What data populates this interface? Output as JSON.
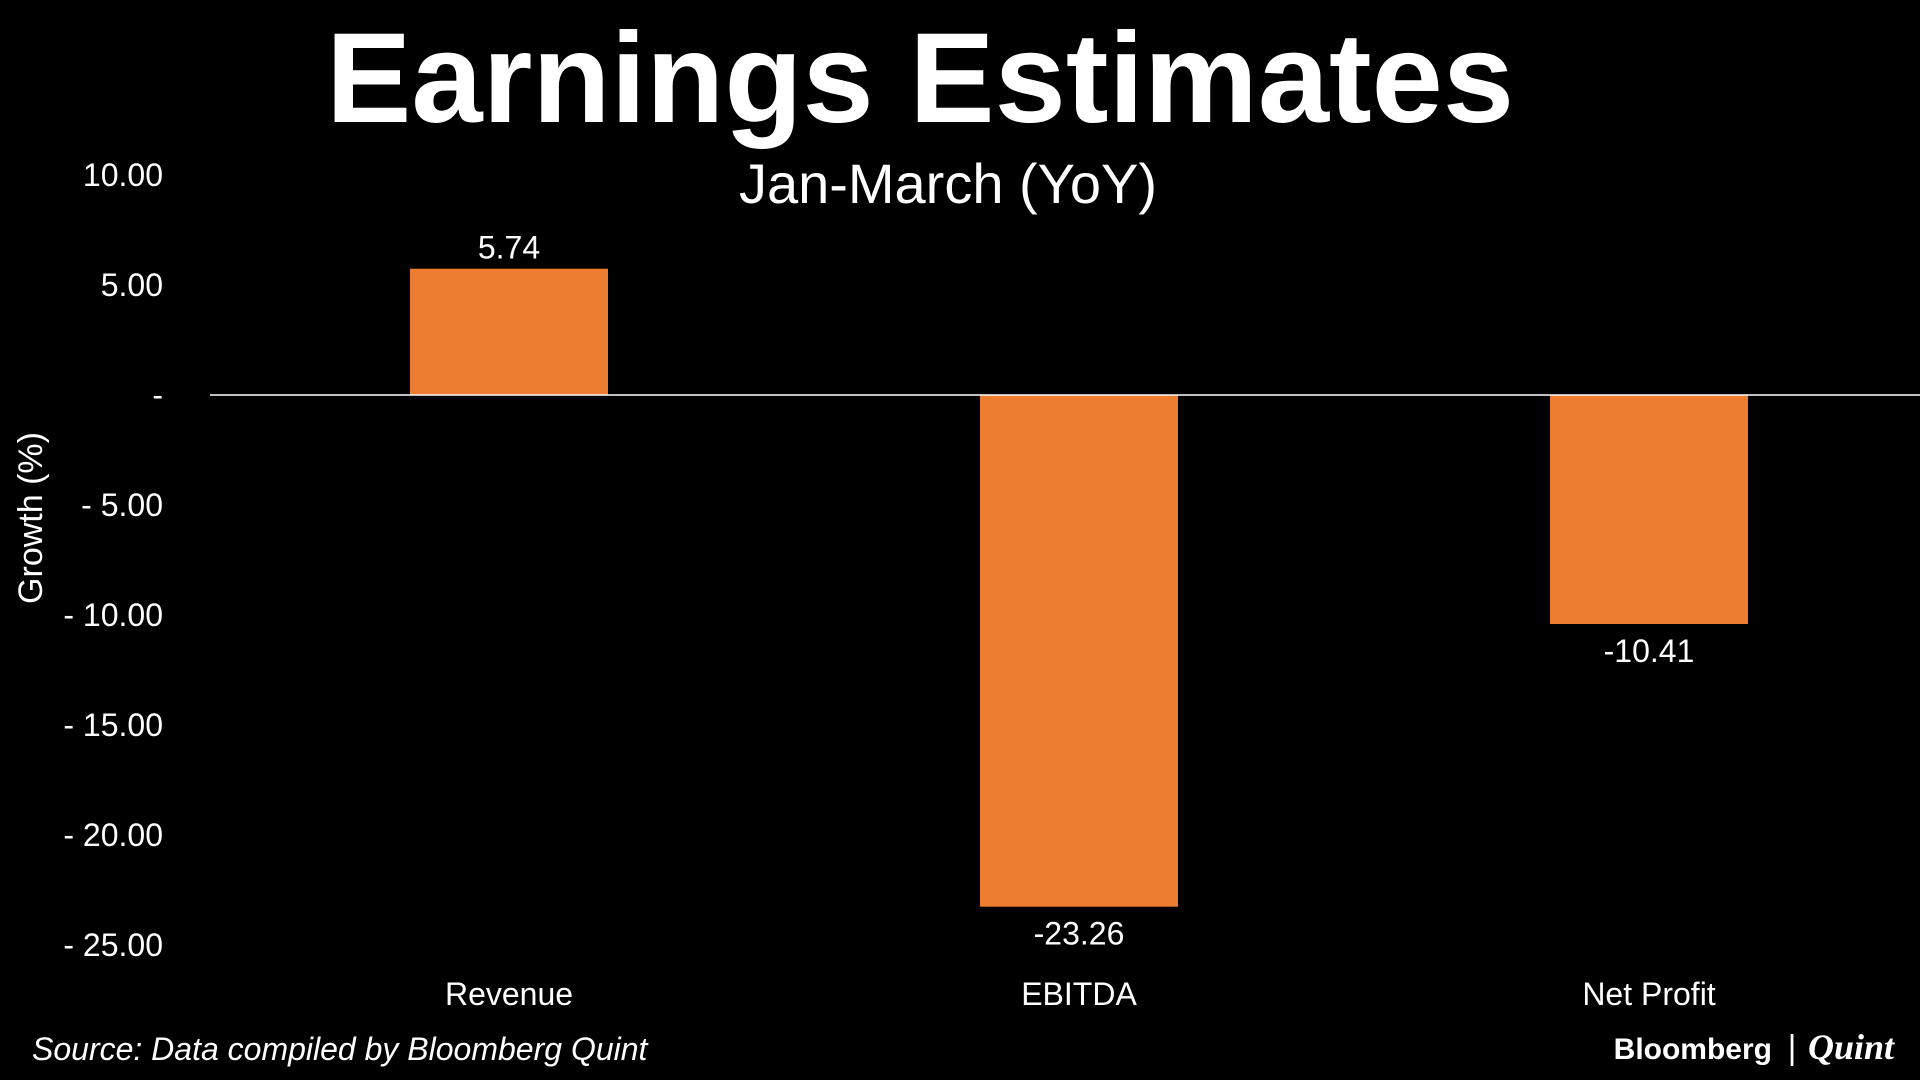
{
  "chart_data": {
    "type": "bar",
    "title": "Earnings Estimates",
    "subtitle": "Jan-March (YoY)",
    "ylabel": "Growth  (%)",
    "xlabel": "",
    "categories": [
      "Revenue",
      "EBITDA",
      "Net Profit"
    ],
    "values": [
      5.74,
      -23.26,
      -10.41
    ],
    "value_labels": [
      "5.74",
      "-23.26",
      "-10.41"
    ],
    "ylim": [
      -25,
      10
    ],
    "yticks": [
      10,
      5,
      0,
      -5,
      -10,
      -15,
      -20,
      -25
    ],
    "ytick_labels": [
      "10.00",
      "5.00",
      "-",
      "- 5.00",
      "- 10.00",
      "- 15.00",
      "- 20.00",
      "- 25.00"
    ],
    "grid": false,
    "legend": "none"
  },
  "source": "Source: Data compiled by Bloomberg Quint",
  "brand": {
    "primary": "Bloomberg",
    "separator": "|",
    "secondary": "Quint"
  },
  "colors": {
    "background": "#000000",
    "bar": "#ED7D31",
    "text": "#FFFFFF",
    "zero_line": "#FFFFFF"
  }
}
